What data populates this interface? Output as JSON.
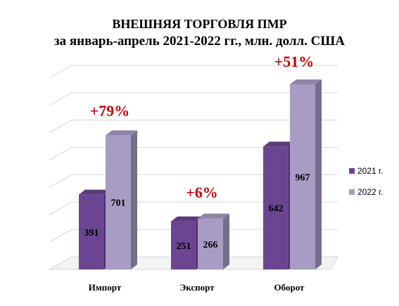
{
  "chart_data": {
    "type": "bar",
    "title": "ВНЕШНЯЯ ТОРГОВЛЯ ПМР",
    "subtitle": "за январь-апрель  2021-2022 гг., млн. долл. США",
    "categories": [
      "Импорт",
      "Экспорт",
      "Оборот"
    ],
    "series": [
      {
        "name": "2021 г.",
        "values": [
          391,
          251,
          642
        ],
        "labels": [
          "391",
          "251",
          "642"
        ],
        "color": "#6b4592"
      },
      {
        "name": "2022 г.",
        "values": [
          701,
          266,
          967
        ],
        "labels": [
          "701",
          "266",
          "967"
        ],
        "color": "#a89bc4"
      }
    ],
    "annotations": [
      "+79%",
      "+6%",
      "+51%"
    ],
    "annotation_color": "#c00000",
    "ylim": [
      0,
      1000
    ],
    "grid": true,
    "legend_position": "right",
    "xlabel": "",
    "ylabel": ""
  }
}
